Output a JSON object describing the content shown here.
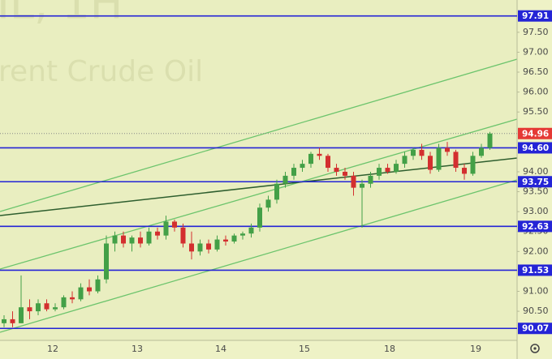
{
  "chart_data": {
    "type": "candlestick",
    "title": "IL, 1H",
    "subtitle": "rent Crude Oil",
    "x_labels": [
      "12",
      "13",
      "14",
      "15",
      "18",
      "19"
    ],
    "open": [
      90.2,
      90.3,
      90.2,
      90.6,
      90.5,
      90.7,
      90.55,
      90.6,
      90.85,
      90.8,
      91.1,
      91.0,
      91.3,
      92.2,
      92.4,
      92.2,
      92.35,
      92.2,
      92.5,
      92.4,
      92.75,
      92.6,
      92.2,
      92.0,
      92.2,
      92.05,
      92.3,
      92.25,
      92.4,
      92.45,
      92.6,
      93.1,
      93.3,
      93.7,
      93.9,
      94.1,
      94.2,
      94.45,
      94.4,
      94.1,
      94.0,
      93.9,
      93.6,
      93.7,
      93.9,
      94.1,
      94.0,
      94.2,
      94.4,
      94.55,
      94.4,
      94.05,
      94.6,
      94.5,
      94.1,
      93.95,
      94.4,
      94.6
    ],
    "high": [
      90.4,
      90.5,
      91.4,
      90.8,
      90.8,
      90.8,
      90.7,
      90.9,
      91.0,
      91.2,
      91.3,
      91.4,
      92.4,
      92.5,
      92.5,
      92.4,
      92.5,
      92.6,
      92.6,
      92.9,
      92.8,
      92.7,
      92.5,
      92.3,
      92.3,
      92.4,
      92.4,
      92.45,
      92.5,
      92.7,
      93.2,
      93.4,
      93.8,
      94.0,
      94.2,
      94.3,
      94.5,
      94.6,
      94.45,
      94.2,
      94.1,
      94.0,
      93.8,
      94.0,
      94.2,
      94.2,
      94.3,
      94.5,
      94.6,
      94.7,
      94.5,
      94.7,
      94.75,
      94.55,
      94.2,
      94.5,
      94.7,
      95.0
    ],
    "low": [
      90.1,
      90.1,
      90.2,
      90.3,
      90.4,
      90.5,
      90.5,
      90.55,
      90.7,
      90.75,
      90.9,
      90.95,
      91.2,
      92.0,
      92.1,
      92.0,
      92.1,
      92.15,
      92.3,
      92.3,
      92.5,
      92.1,
      91.8,
      91.9,
      91.95,
      92.0,
      92.15,
      92.2,
      92.3,
      92.35,
      92.5,
      93.0,
      93.2,
      93.6,
      93.8,
      94.0,
      94.1,
      94.3,
      94.0,
      93.9,
      93.8,
      93.4,
      92.6,
      93.6,
      93.8,
      93.95,
      93.95,
      94.1,
      94.3,
      94.3,
      93.95,
      94.0,
      94.4,
      94.0,
      93.8,
      93.9,
      94.35,
      94.55
    ],
    "close": [
      90.3,
      90.2,
      90.6,
      90.5,
      90.7,
      90.55,
      90.6,
      90.85,
      90.8,
      91.1,
      91.0,
      91.3,
      92.2,
      92.4,
      92.2,
      92.35,
      92.2,
      92.5,
      92.4,
      92.75,
      92.6,
      92.2,
      92.0,
      92.2,
      92.05,
      92.3,
      92.25,
      92.4,
      92.45,
      92.6,
      93.1,
      93.3,
      93.7,
      93.9,
      94.1,
      94.2,
      94.45,
      94.4,
      94.1,
      94.0,
      93.9,
      93.6,
      93.7,
      93.9,
      94.1,
      94.0,
      94.2,
      94.4,
      94.55,
      94.4,
      94.05,
      94.6,
      94.5,
      94.1,
      93.95,
      94.4,
      94.6,
      94.96
    ],
    "up_color": "#43a047",
    "down_color": "#d32f2f",
    "levels": [
      97.91,
      {
        "value": 94.6,
        "label": "94.60"
      },
      93.75,
      92.63,
      91.53,
      90.07
    ],
    "level_color": "#2424d6",
    "last_price": 94.96,
    "last_price_color": "#e53935",
    "ylim": [
      89.77,
      98.31
    ],
    "yticks": [
      {
        "value": 97.5,
        "label": "97.50"
      },
      {
        "value": 97,
        "label": "97.00"
      },
      {
        "value": 96.5,
        "label": "96.50"
      },
      {
        "value": 96,
        "label": "96.00"
      },
      {
        "value": 95.5,
        "label": "95.50"
      },
      {
        "value": 94,
        "label": "94.00"
      },
      {
        "value": 93.5,
        "label": "93.50"
      },
      {
        "value": 93,
        "label": "93.00"
      },
      {
        "value": 92.5,
        "label": "92.50"
      },
      {
        "value": 92,
        "label": "92.00"
      },
      {
        "value": 91,
        "label": "91.00"
      },
      {
        "value": 90.5,
        "label": "90.50"
      }
    ]
  }
}
